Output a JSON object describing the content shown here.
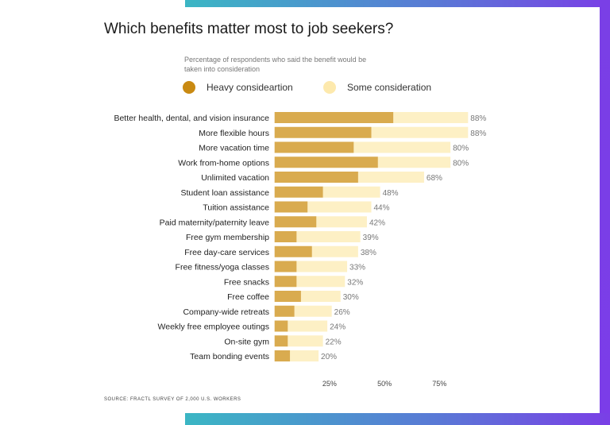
{
  "title": "Which benefits matter most to job seekers?",
  "subtitle": "Percentage of respondents who said the benefit would be taken into consideration",
  "source": "SOURCE: FRACTL SURVEY OF 2,000 U.S. WORKERS",
  "colors": {
    "heavy": "#d9ab4f",
    "some": "#fdf0c5",
    "heavy_legend": "#c98a12",
    "some_legend": "#fde9ad"
  },
  "chart_data": {
    "type": "bar",
    "orientation": "horizontal",
    "stacked": true,
    "title": "Which benefits matter most to job seekers?",
    "subtitle": "Percentage of respondents who said the benefit would be taken into consideration",
    "legend": {
      "placement": "top",
      "entries": [
        "Heavy consideartion",
        "Some consideration"
      ]
    },
    "categories": [
      "Better health, dental, and vision insurance",
      "More flexible hours",
      "More vacation time",
      "Work from-home options",
      "Unlimited vacation",
      "Student loan assistance",
      "Tuition assistance",
      "Paid maternity/paternity leave",
      "Free gym membership",
      "Free day-care services",
      "Free fitness/yoga classes",
      "Free snacks",
      "Free coffee",
      "Company-wide retreats",
      "Weekly free employee outings",
      "On-site gym",
      "Team bonding events"
    ],
    "series": [
      {
        "name": "Heavy consideartion",
        "values": [
          54,
          44,
          36,
          47,
          38,
          22,
          15,
          19,
          10,
          17,
          10,
          10,
          12,
          9,
          6,
          6,
          7
        ]
      },
      {
        "name": "Some consideration",
        "values": [
          34,
          44,
          44,
          33,
          30,
          26,
          29,
          23,
          29,
          21,
          23,
          22,
          18,
          17,
          18,
          16,
          13
        ]
      }
    ],
    "totals": [
      88,
      88,
      80,
      80,
      68,
      48,
      44,
      42,
      39,
      38,
      33,
      32,
      30,
      26,
      24,
      22,
      20
    ],
    "total_labels": [
      "88%",
      "88%",
      "80%",
      "80%",
      "68%",
      "48%",
      "44%",
      "42%",
      "39%",
      "38%",
      "33%",
      "32%",
      "30%",
      "26%",
      "24%",
      "22%",
      "20%"
    ],
    "xticks": [
      25,
      50,
      75
    ],
    "xtick_labels": [
      "25%",
      "50%",
      "75%"
    ],
    "xlim": [
      0,
      100
    ],
    "grid": false
  }
}
